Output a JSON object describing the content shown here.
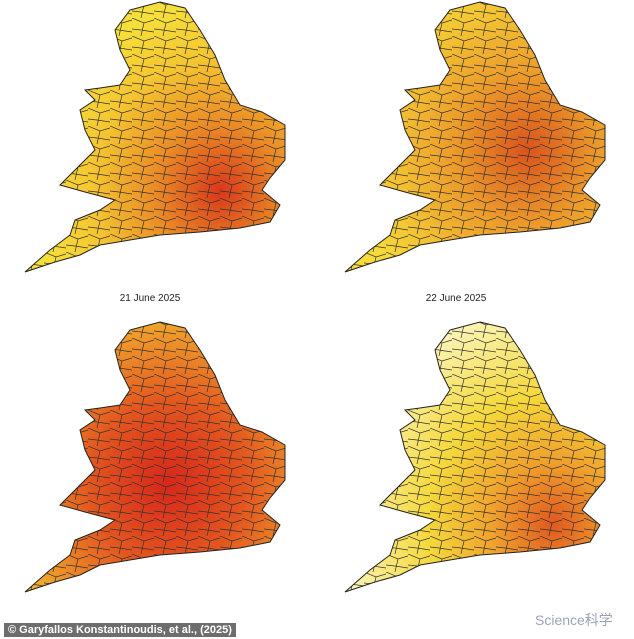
{
  "labels": [
    "21 June 2025",
    "22 June 2025"
  ],
  "credit": "© Garyfallos Konstantinoudis, et al., (2025)",
  "watermark": "Science科学"
}
